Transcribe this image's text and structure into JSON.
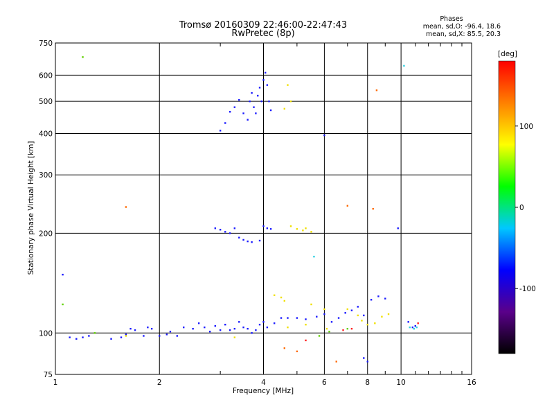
{
  "chart_data": {
    "type": "scatter",
    "title": "Tromsø 20160309 22:46:00-22:47:43",
    "subtitle": "RwPretec (8p)",
    "xlabel": "Frequency [MHz]",
    "ylabel": "Stationary phase Virtual Height [km]",
    "x_scale": "log",
    "y_scale": "log",
    "xlim": [
      1,
      16
    ],
    "ylim": [
      75,
      750
    ],
    "x_ticks": [
      1,
      2,
      4,
      6,
      8,
      10,
      16
    ],
    "y_ticks": [
      75,
      100,
      200,
      300,
      400,
      500,
      600,
      750
    ],
    "grid": true,
    "phases_box": {
      "heading": "Phases",
      "line_o": "mean, sd,O: -96.4, 18.6",
      "line_x": "mean, sd,X:  85.5, 20.3"
    },
    "colorbar": {
      "label": "[deg]",
      "range": [
        -180,
        180
      ],
      "ticks": [
        100,
        0,
        -100
      ],
      "stops": [
        "#000000",
        "#5a008a",
        "#0000ff",
        "#00c8ff",
        "#00ff00",
        "#ffff00",
        "#ff8000",
        "#ff0000"
      ]
    },
    "series": [
      {
        "phase": -100,
        "color": "#1a1aff",
        "points": [
          [
            1.1,
            97
          ],
          [
            1.15,
            96
          ],
          [
            1.2,
            97
          ],
          [
            1.25,
            98
          ],
          [
            1.45,
            96
          ],
          [
            1.55,
            97
          ],
          [
            1.6,
            99
          ],
          [
            1.65,
            103
          ],
          [
            1.7,
            102
          ],
          [
            1.8,
            98
          ],
          [
            1.85,
            104
          ],
          [
            1.9,
            103
          ],
          [
            2.0,
            98
          ],
          [
            2.1,
            99
          ],
          [
            2.15,
            101
          ],
          [
            2.25,
            98
          ],
          [
            2.35,
            104
          ],
          [
            2.5,
            103
          ],
          [
            2.6,
            107
          ],
          [
            2.7,
            104
          ],
          [
            2.8,
            101
          ],
          [
            2.9,
            105
          ],
          [
            3.0,
            102
          ],
          [
            3.1,
            106
          ],
          [
            3.2,
            102
          ],
          [
            3.3,
            103
          ],
          [
            3.4,
            108
          ],
          [
            3.5,
            104
          ],
          [
            3.6,
            103
          ],
          [
            3.7,
            100
          ],
          [
            3.8,
            102
          ],
          [
            3.9,
            106
          ],
          [
            4.0,
            108
          ],
          [
            4.1,
            104
          ],
          [
            4.3,
            107
          ],
          [
            4.5,
            111
          ],
          [
            4.7,
            111
          ],
          [
            5.0,
            111
          ],
          [
            5.3,
            110
          ],
          [
            5.7,
            112
          ],
          [
            6.0,
            114
          ],
          [
            6.3,
            108
          ],
          [
            6.6,
            111
          ],
          [
            6.9,
            115
          ],
          [
            7.2,
            117
          ],
          [
            7.5,
            120
          ],
          [
            7.8,
            113
          ],
          [
            8.2,
            126
          ],
          [
            8.6,
            129
          ],
          [
            9.0,
            127
          ],
          [
            2.9,
            207
          ],
          [
            3.0,
            205
          ],
          [
            3.1,
            202
          ],
          [
            3.2,
            200
          ],
          [
            3.3,
            207
          ],
          [
            3.4,
            194
          ],
          [
            3.5,
            191
          ],
          [
            3.6,
            189
          ],
          [
            3.7,
            188
          ],
          [
            3.9,
            190
          ],
          [
            4.0,
            210
          ],
          [
            4.1,
            207
          ],
          [
            4.2,
            206
          ],
          [
            3.0,
            408
          ],
          [
            3.1,
            430
          ],
          [
            3.2,
            465
          ],
          [
            3.3,
            480
          ],
          [
            3.4,
            505
          ],
          [
            3.5,
            460
          ],
          [
            3.6,
            440
          ],
          [
            3.65,
            500
          ],
          [
            3.7,
            530
          ],
          [
            3.75,
            480
          ],
          [
            3.8,
            460
          ],
          [
            3.85,
            520
          ],
          [
            3.9,
            550
          ],
          [
            3.95,
            500
          ],
          [
            4.0,
            580
          ],
          [
            4.05,
            610
          ],
          [
            4.1,
            560
          ],
          [
            4.15,
            500
          ],
          [
            4.2,
            470
          ],
          [
            10.5,
            108
          ],
          [
            10.8,
            104
          ],
          [
            11.0,
            105
          ],
          [
            1.05,
            150
          ],
          [
            9.8,
            207
          ],
          [
            6.0,
            395
          ],
          [
            8.0,
            82
          ],
          [
            7.8,
            84
          ]
        ]
      },
      {
        "phase": 100,
        "color": "#f0e000",
        "points": [
          [
            4.8,
            210
          ],
          [
            5.0,
            206
          ],
          [
            5.2,
            204
          ],
          [
            5.3,
            207
          ],
          [
            5.5,
            202
          ],
          [
            4.5,
            128
          ],
          [
            4.6,
            125
          ],
          [
            5.5,
            122
          ],
          [
            6.0,
            118
          ],
          [
            7.0,
            118
          ],
          [
            7.5,
            113
          ],
          [
            7.7,
            109
          ],
          [
            8.0,
            106
          ],
          [
            8.4,
            107
          ],
          [
            8.8,
            112
          ],
          [
            9.2,
            114
          ],
          [
            4.3,
            130
          ],
          [
            4.7,
            104
          ],
          [
            5.3,
            106
          ],
          [
            6.1,
            103
          ],
          [
            4.7,
            560
          ],
          [
            4.6,
            475
          ],
          [
            4.8,
            500
          ],
          [
            1.6,
            98
          ],
          [
            3.3,
            97
          ]
        ]
      },
      {
        "phase": 40,
        "color": "#60d000",
        "points": [
          [
            1.2,
            680
          ],
          [
            1.05,
            122
          ],
          [
            1.3,
            100
          ],
          [
            5.8,
            98
          ],
          [
            6.2,
            101
          ],
          [
            7.0,
            103
          ]
        ]
      },
      {
        "phase": -20,
        "color": "#30d0e0",
        "points": [
          [
            10.2,
            640
          ],
          [
            10.6,
            104
          ],
          [
            10.9,
            103
          ],
          [
            11.1,
            104
          ],
          [
            5.6,
            170
          ]
        ]
      },
      {
        "phase": 150,
        "color": "#ff6a00",
        "points": [
          [
            1.6,
            240
          ],
          [
            7.0,
            242
          ],
          [
            8.3,
            237
          ],
          [
            4.6,
            90
          ],
          [
            5.0,
            88
          ],
          [
            6.5,
            82
          ],
          [
            8.5,
            540
          ]
        ]
      },
      {
        "phase": 175,
        "color": "#ff2020",
        "points": [
          [
            6.8,
            102
          ],
          [
            7.2,
            103
          ],
          [
            11.2,
            107
          ],
          [
            5.3,
            95
          ]
        ]
      }
    ]
  }
}
